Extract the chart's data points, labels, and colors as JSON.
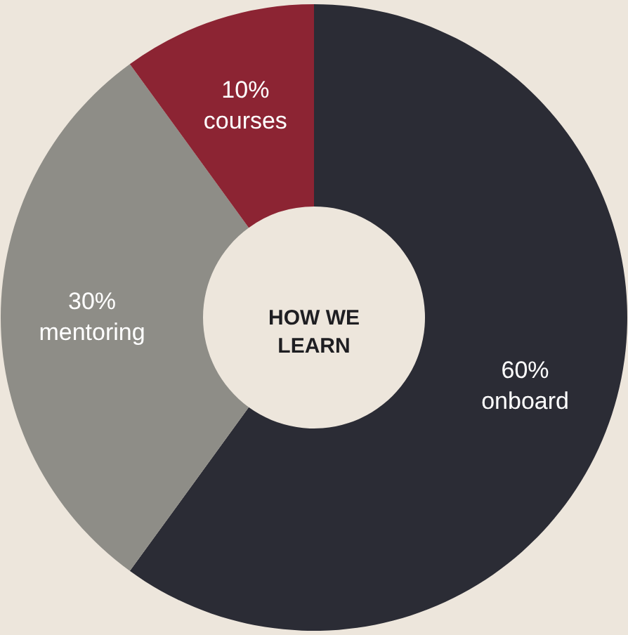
{
  "chart_data": {
    "type": "donut",
    "title": "HOW WE LEARN",
    "categories": [
      "onboard",
      "mentoring",
      "courses"
    ],
    "values": [
      60,
      30,
      10
    ],
    "colors": [
      "#2b2c35",
      "#8e8d87",
      "#8c2433"
    ],
    "value_labels": [
      "60%",
      "30%",
      "10%"
    ]
  }
}
